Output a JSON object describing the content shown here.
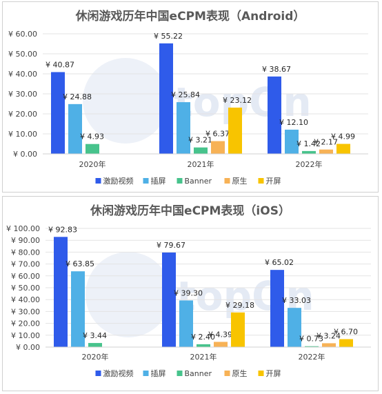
{
  "watermark": "topOn",
  "legend_text": [
    "激励视频",
    "插屏",
    "Banner",
    "原生",
    "开屏"
  ],
  "chart_data": [
    {
      "type": "bar",
      "title": "休闲游戏历年中国eCPM表现（Android）",
      "categories": [
        "2020年",
        "2021年",
        "2022年"
      ],
      "ylim": [
        0,
        60
      ],
      "ytick_step": 10,
      "ytick_labels": [
        "¥ 0.00",
        "¥ 10.00",
        "¥ 20.00",
        "¥ 30.00",
        "¥ 40.00",
        "¥ 50.00",
        "¥ 60.00"
      ],
      "grid": true,
      "legend_position": "bottom",
      "series": [
        {
          "name": "激励视频",
          "color": "#2f5bea",
          "values": [
            40.87,
            55.22,
            38.67
          ],
          "labels": [
            "¥ 40.87",
            "¥ 55.22",
            "¥ 38.67"
          ]
        },
        {
          "name": "插屏",
          "color": "#4fb0e6",
          "values": [
            24.88,
            25.84,
            12.1
          ],
          "labels": [
            "¥ 24.88",
            "¥ 25.84",
            "¥ 12.10"
          ]
        },
        {
          "name": "Banner",
          "color": "#47c38c",
          "values": [
            4.93,
            3.21,
            1.42
          ],
          "labels": [
            "¥ 4.93",
            "¥ 3.21",
            "¥ 1.42"
          ]
        },
        {
          "name": "原生",
          "color": "#f7b256",
          "values": [
            null,
            6.37,
            2.17
          ],
          "labels": [
            null,
            "¥ 6.37",
            "¥ 2.17"
          ]
        },
        {
          "name": "开屏",
          "color": "#f8c400",
          "values": [
            null,
            23.12,
            4.99
          ],
          "labels": [
            null,
            "¥ 23.12",
            "¥ 4.99"
          ]
        }
      ]
    },
    {
      "type": "bar",
      "title": "休闲游戏历年中国eCPM表现（iOS）",
      "categories": [
        "2020年",
        "2021年",
        "2022年"
      ],
      "ylim": [
        0,
        100
      ],
      "ytick_step": 10,
      "ytick_labels": [
        "¥ 0.00",
        "¥ 10.00",
        "¥ 20.00",
        "¥ 30.00",
        "¥ 40.00",
        "¥ 50.00",
        "¥ 60.00",
        "¥ 70.00",
        "¥ 80.00",
        "¥ 90.00",
        "¥ 100.00"
      ],
      "grid": true,
      "legend_position": "bottom",
      "series": [
        {
          "name": "激励视频",
          "color": "#2f5bea",
          "values": [
            92.83,
            79.67,
            65.02
          ],
          "labels": [
            "¥ 92.83",
            "¥ 79.67",
            "¥ 65.02"
          ]
        },
        {
          "name": "插屏",
          "color": "#4fb0e6",
          "values": [
            63.85,
            39.3,
            33.03
          ],
          "labels": [
            "¥ 63.85",
            "¥ 39.30",
            "¥ 33.03"
          ]
        },
        {
          "name": "Banner",
          "color": "#47c38c",
          "values": [
            3.44,
            2.4,
            0.73
          ],
          "labels": [
            "¥ 3.44",
            "¥ 2.40",
            "¥ 0.73"
          ]
        },
        {
          "name": "原生",
          "color": "#f7b256",
          "values": [
            null,
            4.39,
            3.24
          ],
          "labels": [
            null,
            "¥ 4.39",
            "¥ 3.24"
          ]
        },
        {
          "name": "开屏",
          "color": "#f8c400",
          "values": [
            null,
            29.18,
            6.7
          ],
          "labels": [
            null,
            "¥ 29.18",
            "¥ 6.70"
          ]
        }
      ]
    }
  ]
}
